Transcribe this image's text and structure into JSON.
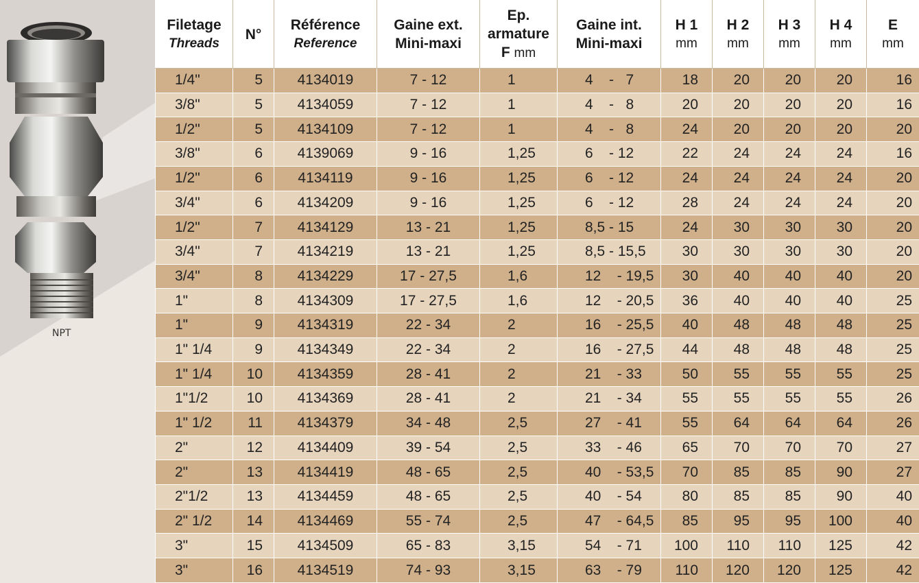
{
  "product": {
    "label": "NPT"
  },
  "headers": {
    "filetage": {
      "fr": "Filetage",
      "en": "Threads"
    },
    "num": "N°",
    "reference": {
      "fr": "Référence",
      "en": "Reference"
    },
    "gaine_ext": {
      "l1": "Gaine ext.",
      "l2": "Mini-maxi"
    },
    "ep_armature": {
      "l1": "Ep.",
      "l2": "armature",
      "l3": "F",
      "unit": "mm"
    },
    "gaine_int": {
      "l1": "Gaine int.",
      "l2": "Mini-maxi"
    },
    "h1": {
      "label": "H 1",
      "unit": "mm"
    },
    "h2": {
      "label": "H 2",
      "unit": "mm"
    },
    "h3": {
      "label": "H 3",
      "unit": "mm"
    },
    "h4": {
      "label": "H 4",
      "unit": "mm"
    },
    "e": {
      "label": "E",
      "unit": "mm"
    }
  },
  "rows": [
    {
      "thread": "1/4\"",
      "num": "5",
      "ref": "4134019",
      "ext": "7 - 12",
      "ep": "1",
      "int": "4    -   7",
      "h1": "18",
      "h2": "20",
      "h3": "20",
      "h4": "20",
      "e": "16"
    },
    {
      "thread": "3/8\"",
      "num": "5",
      "ref": "4134059",
      "ext": "7 - 12",
      "ep": "1",
      "int": "4    -   8",
      "h1": "20",
      "h2": "20",
      "h3": "20",
      "h4": "20",
      "e": "16"
    },
    {
      "thread": "1/2\"",
      "num": "5",
      "ref": "4134109",
      "ext": "7 - 12",
      "ep": "1",
      "int": "4    -   8",
      "h1": "24",
      "h2": "20",
      "h3": "20",
      "h4": "20",
      "e": "20"
    },
    {
      "thread": "3/8\"",
      "num": "6",
      "ref": "4139069",
      "ext": "9 - 16",
      "ep": "1,25",
      "int": "6    - 12",
      "h1": "22",
      "h2": "24",
      "h3": "24",
      "h4": "24",
      "e": "16"
    },
    {
      "thread": "1/2\"",
      "num": "6",
      "ref": "4134119",
      "ext": "9 - 16",
      "ep": "1,25",
      "int": "6    - 12",
      "h1": "24",
      "h2": "24",
      "h3": "24",
      "h4": "24",
      "e": "20"
    },
    {
      "thread": "3/4\"",
      "num": "6",
      "ref": "4134209",
      "ext": "9 - 16",
      "ep": "1,25",
      "int": "6    - 12",
      "h1": "28",
      "h2": "24",
      "h3": "24",
      "h4": "24",
      "e": "20"
    },
    {
      "thread": "1/2\"",
      "num": "7",
      "ref": "4134129",
      "ext": "13 - 21",
      "ep": "1,25",
      "int": "8,5 - 15",
      "h1": "24",
      "h2": "30",
      "h3": "30",
      "h4": "30",
      "e": "20"
    },
    {
      "thread": "3/4\"",
      "num": "7",
      "ref": "4134219",
      "ext": "13 - 21",
      "ep": "1,25",
      "int": "8,5 - 15,5",
      "h1": "30",
      "h2": "30",
      "h3": "30",
      "h4": "30",
      "e": "20"
    },
    {
      "thread": "3/4\"",
      "num": "8",
      "ref": "4134229",
      "ext": "17 - 27,5",
      "ep": "1,6",
      "int": "12    - 19,5",
      "h1": "30",
      "h2": "40",
      "h3": "40",
      "h4": "40",
      "e": "20"
    },
    {
      "thread": "1\"",
      "num": "8",
      "ref": "4134309",
      "ext": "17 - 27,5",
      "ep": "1,6",
      "int": "12    - 20,5",
      "h1": "36",
      "h2": "40",
      "h3": "40",
      "h4": "40",
      "e": "25"
    },
    {
      "thread": "1\"",
      "num": "9",
      "ref": "4134319",
      "ext": "22 - 34",
      "ep": "2",
      "int": "16    - 25,5",
      "h1": "40",
      "h2": "48",
      "h3": "48",
      "h4": "48",
      "e": "25"
    },
    {
      "thread": "1\" 1/4",
      "num": "9",
      "ref": "4134349",
      "ext": "22 - 34",
      "ep": "2",
      "int": "16    - 27,5",
      "h1": "44",
      "h2": "48",
      "h3": "48",
      "h4": "48",
      "e": "25"
    },
    {
      "thread": "1\" 1/4",
      "num": "10",
      "ref": "4134359",
      "ext": "28 - 41",
      "ep": "2",
      "int": "21    - 33",
      "h1": "50",
      "h2": "55",
      "h3": "55",
      "h4": "55",
      "e": "25"
    },
    {
      "thread": "1\"1/2",
      "num": "10",
      "ref": "4134369",
      "ext": "28 - 41",
      "ep": "2",
      "int": "21    - 34",
      "h1": "55",
      "h2": "55",
      "h3": "55",
      "h4": "55",
      "e": "26"
    },
    {
      "thread": "1\" 1/2",
      "num": "11",
      "ref": "4134379",
      "ext": "34 - 48",
      "ep": "2,5",
      "int": "27    - 41",
      "h1": "55",
      "h2": "64",
      "h3": "64",
      "h4": "64",
      "e": "26"
    },
    {
      "thread": "2\"",
      "num": "12",
      "ref": "4134409",
      "ext": "39 - 54",
      "ep": "2,5",
      "int": "33    - 46",
      "h1": "65",
      "h2": "70",
      "h3": "70",
      "h4": "70",
      "e": "27"
    },
    {
      "thread": "2\"",
      "num": "13",
      "ref": "4134419",
      "ext": "48 - 65",
      "ep": "2,5",
      "int": "40    - 53,5",
      "h1": "70",
      "h2": "85",
      "h3": "85",
      "h4": "90",
      "e": "27"
    },
    {
      "thread": "2\"1/2",
      "num": "13",
      "ref": "4134459",
      "ext": "48 - 65",
      "ep": "2,5",
      "int": "40    - 54",
      "h1": "80",
      "h2": "85",
      "h3": "85",
      "h4": "90",
      "e": "40"
    },
    {
      "thread": "2\" 1/2",
      "num": "14",
      "ref": "4134469",
      "ext": "55 - 74",
      "ep": "2,5",
      "int": "47    - 64,5",
      "h1": "85",
      "h2": "95",
      "h3": "95",
      "h4": "100",
      "e": "40"
    },
    {
      "thread": "3\"",
      "num": "15",
      "ref": "4134509",
      "ext": "65 - 83",
      "ep": "3,15",
      "int": "54    - 71",
      "h1": "100",
      "h2": "110",
      "h3": "110",
      "h4": "125",
      "e": "42"
    },
    {
      "thread": "3\"",
      "num": "16",
      "ref": "4134519",
      "ext": "74 - 93",
      "ep": "3,15",
      "int": "63    - 79",
      "h1": "110",
      "h2": "120",
      "h3": "120",
      "h4": "125",
      "e": "42"
    }
  ]
}
